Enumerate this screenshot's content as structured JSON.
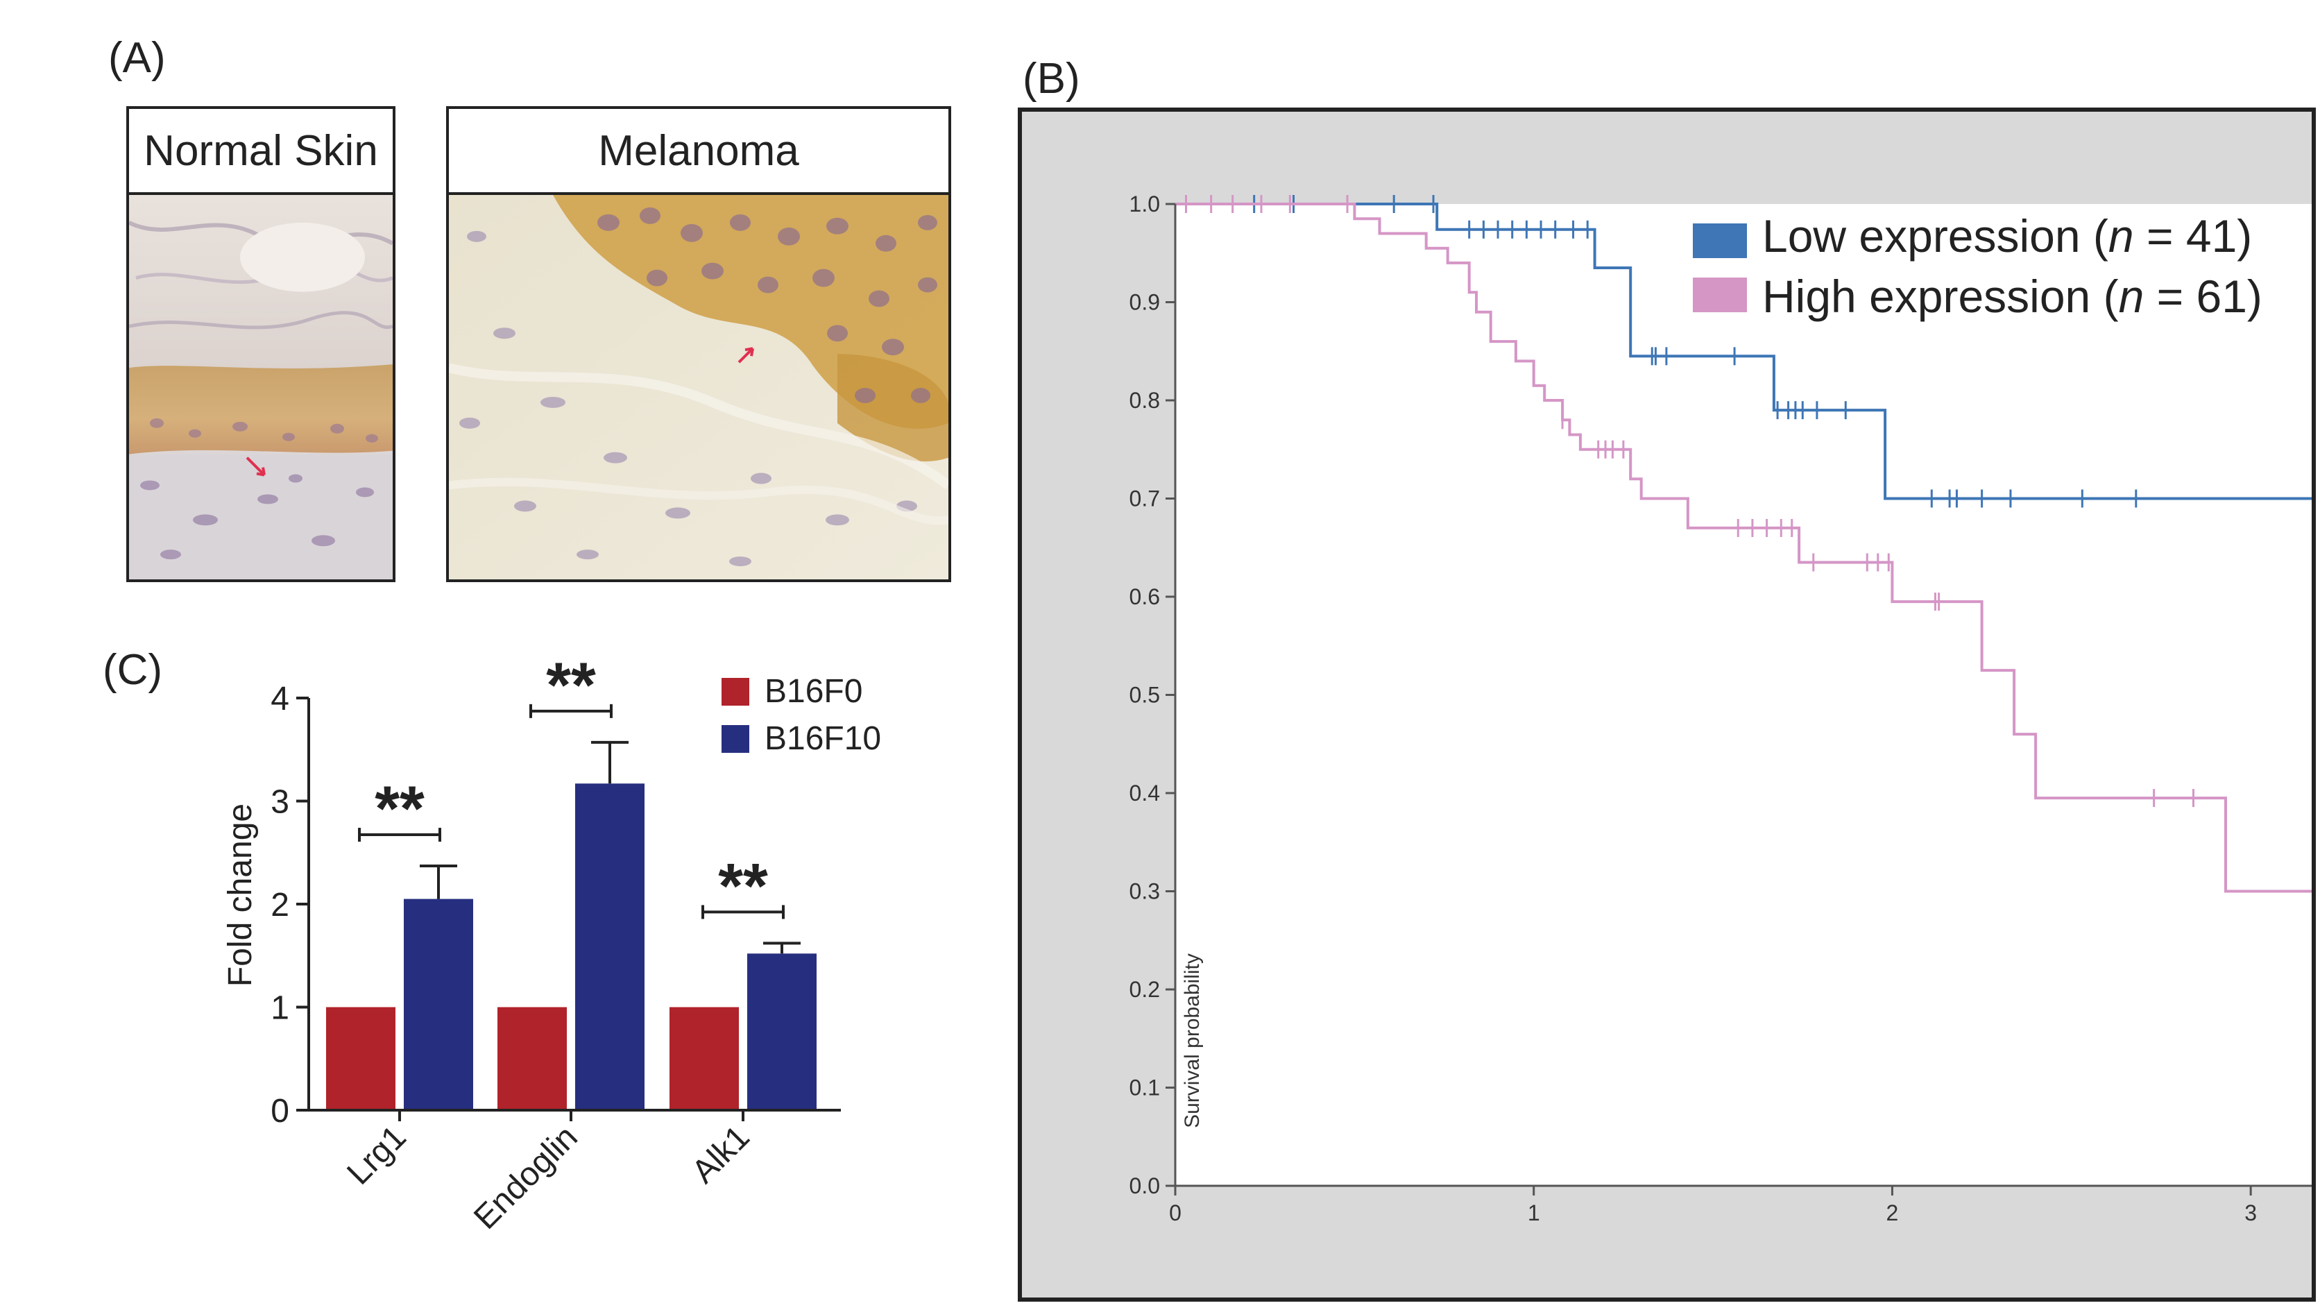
{
  "panels": {
    "a_label": "(A)",
    "b_label": "(B)",
    "c_label": "(C)"
  },
  "images": {
    "normal_title": "Normal Skin",
    "melanoma_title": "Melanoma"
  },
  "colors": {
    "b16f0": "#b0232b",
    "b16f10": "#262f7f",
    "low_expression": "#3e76b6",
    "high_expression": "#d596c6",
    "survival_bg": "#d9d9d9"
  },
  "chart_data": [
    {
      "type": "bar",
      "title": "",
      "xlabel": "",
      "ylabel": "Fold change",
      "ylim": [
        0,
        4
      ],
      "yticks": [
        "0",
        "1",
        "2",
        "3",
        "4"
      ],
      "categories": [
        "Lrg1",
        "Endoglin",
        "Alk1"
      ],
      "series": [
        {
          "name": "B16F0",
          "values": [
            1,
            1,
            1
          ],
          "errors": [
            0,
            0,
            0
          ]
        },
        {
          "name": "B16F10",
          "values": [
            2.05,
            3.17,
            1.52
          ],
          "errors": [
            0.32,
            0.4,
            0.1
          ]
        }
      ],
      "significance": [
        "**",
        "**",
        "**"
      ],
      "legend_position": "top-right"
    },
    {
      "type": "line",
      "title": "",
      "xlabel": "",
      "ylabel": "Survival probability",
      "xlim": [
        0,
        3.17
      ],
      "ylim": [
        0,
        1
      ],
      "xticks": [
        "0",
        "1",
        "2",
        "3"
      ],
      "yticks": [
        "0.0",
        "0.1",
        "0.2",
        "0.3",
        "0.4",
        "0.5",
        "0.6",
        "0.7",
        "0.8",
        "0.9",
        "1.0"
      ],
      "legend_position": "top-right",
      "series": [
        {
          "name": "Low expression",
          "n_label": "n",
          "n_value": "= 41)",
          "steps": [
            [
              0,
              1.0
            ],
            [
              0.73,
              1.0
            ],
            [
              0.73,
              0.974
            ],
            [
              1.17,
              0.974
            ],
            [
              1.17,
              0.935
            ],
            [
              1.27,
              0.935
            ],
            [
              1.27,
              0.845
            ],
            [
              1.67,
              0.845
            ],
            [
              1.67,
              0.79
            ],
            [
              1.98,
              0.79
            ],
            [
              1.98,
              0.7
            ],
            [
              3.17,
              0.7
            ]
          ],
          "censor_x": [
            0.03,
            0.22,
            0.33,
            0.61,
            0.72,
            0.82,
            0.86,
            0.9,
            0.94,
            0.98,
            1.02,
            1.06,
            1.11,
            1.15,
            1.33,
            1.34,
            1.37,
            1.56,
            1.68,
            1.71,
            1.73,
            1.75,
            1.79,
            1.87,
            2.11,
            2.16,
            2.18,
            2.25,
            2.33,
            2.53,
            2.68
          ]
        },
        {
          "name": "High expression",
          "n_label": "n",
          "n_value": "= 61)",
          "steps": [
            [
              0,
              1.0
            ],
            [
              0.5,
              1.0
            ],
            [
              0.5,
              0.985
            ],
            [
              0.57,
              0.985
            ],
            [
              0.57,
              0.97
            ],
            [
              0.7,
              0.97
            ],
            [
              0.7,
              0.955
            ],
            [
              0.76,
              0.955
            ],
            [
              0.76,
              0.94
            ],
            [
              0.82,
              0.94
            ],
            [
              0.82,
              0.91
            ],
            [
              0.84,
              0.91
            ],
            [
              0.84,
              0.89
            ],
            [
              0.88,
              0.89
            ],
            [
              0.88,
              0.86
            ],
            [
              0.95,
              0.86
            ],
            [
              0.95,
              0.84
            ],
            [
              1.0,
              0.84
            ],
            [
              1.0,
              0.815
            ],
            [
              1.03,
              0.815
            ],
            [
              1.03,
              0.8
            ],
            [
              1.08,
              0.8
            ],
            [
              1.08,
              0.78
            ],
            [
              1.1,
              0.78
            ],
            [
              1.1,
              0.765
            ],
            [
              1.13,
              0.765
            ],
            [
              1.13,
              0.75
            ],
            [
              1.27,
              0.75
            ],
            [
              1.27,
              0.72
            ],
            [
              1.3,
              0.72
            ],
            [
              1.3,
              0.7
            ],
            [
              1.43,
              0.7
            ],
            [
              1.43,
              0.67
            ],
            [
              1.74,
              0.67
            ],
            [
              1.74,
              0.635
            ],
            [
              2.0,
              0.635
            ],
            [
              2.0,
              0.595
            ],
            [
              2.25,
              0.595
            ],
            [
              2.25,
              0.525
            ],
            [
              2.34,
              0.525
            ],
            [
              2.34,
              0.46
            ],
            [
              2.4,
              0.46
            ],
            [
              2.4,
              0.395
            ],
            [
              2.93,
              0.395
            ],
            [
              2.93,
              0.3
            ],
            [
              3.17,
              0.3
            ]
          ],
          "censor_x": [
            0.03,
            0.1,
            0.16,
            0.24,
            0.32,
            0.48,
            1.08,
            1.18,
            1.2,
            1.22,
            1.25,
            1.57,
            1.61,
            1.65,
            1.69,
            1.72,
            1.78,
            1.93,
            1.96,
            1.99,
            2.12,
            2.13,
            2.73,
            2.84
          ]
        }
      ]
    }
  ]
}
